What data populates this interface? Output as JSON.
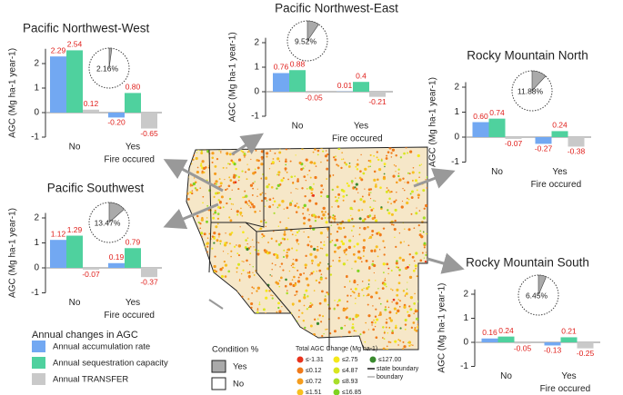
{
  "chart_data": [
    {
      "type": "bar",
      "title": "Pacific Northwest-West",
      "y_label": "AGC (Mg ha-1 year-1)",
      "x_label": "Fire occured",
      "categories": [
        "No",
        "Yes"
      ],
      "series": [
        {
          "name": "Annual accumulation rate",
          "color": "#72a8f2",
          "values": [
            2.29,
            -0.2
          ],
          "value_labels": [
            "2.29",
            "-0.20"
          ]
        },
        {
          "name": "Annual sequestration capacity",
          "color": "#4fd19e",
          "values": [
            2.54,
            0.8
          ],
          "value_labels": [
            "2.54",
            "0.80"
          ]
        },
        {
          "name": "Annual TRANSFER",
          "color": "#c9c9c9",
          "values": [
            0.12,
            -0.65
          ],
          "value_labels": [
            "0.12",
            "-0.65"
          ]
        }
      ],
      "ylim": [
        -1,
        2.6
      ],
      "yticks": [
        -1,
        0,
        1,
        2
      ],
      "fire_share": {
        "value": 2.16,
        "label": "2.16%"
      }
    },
    {
      "type": "bar",
      "title": "Pacific Northwest-East",
      "y_label": "AGC (Mg ha-1 year-1)",
      "x_label": "Fire occured",
      "categories": [
        "No",
        "Yes"
      ],
      "series": [
        {
          "color": "#72a8f2",
          "values": [
            0.76,
            0.01
          ],
          "value_labels": [
            "0.76",
            "0.01"
          ]
        },
        {
          "color": "#4fd19e",
          "values": [
            0.88,
            0.4
          ],
          "value_labels": [
            "0.88",
            "0.4"
          ]
        },
        {
          "color": "#c9c9c9",
          "values": [
            -0.05,
            -0.21
          ],
          "value_labels": [
            "-0.05",
            "-0.21"
          ]
        }
      ],
      "ylim": [
        -1,
        2.2
      ],
      "yticks": [
        -1,
        0,
        1,
        2
      ],
      "fire_share": {
        "value": 9.52,
        "label": "9.52%"
      }
    },
    {
      "type": "bar",
      "title": "Rocky Mountain North",
      "y_label": "AGC (Mg ha-1 year-1)",
      "x_label": "Fire occured",
      "categories": [
        "No",
        "Yes"
      ],
      "series": [
        {
          "color": "#72a8f2",
          "values": [
            0.6,
            -0.27
          ],
          "value_labels": [
            "0.60",
            "-0.27"
          ]
        },
        {
          "color": "#4fd19e",
          "values": [
            0.74,
            0.24
          ],
          "value_labels": [
            "0.74",
            "0.24"
          ]
        },
        {
          "color": "#c9c9c9",
          "values": [
            -0.07,
            -0.38
          ],
          "value_labels": [
            "-0.07",
            "-0.38"
          ]
        }
      ],
      "ylim": [
        -1,
        2.2
      ],
      "yticks": [
        -1,
        0,
        1,
        2
      ],
      "fire_share": {
        "value": 11.88,
        "label": "11.88%"
      }
    },
    {
      "type": "bar",
      "title": "Pacific Southwest",
      "y_label": "AGC (Mg ha-1 year-1)",
      "x_label": "Fire occured",
      "categories": [
        "No",
        "Yes"
      ],
      "series": [
        {
          "color": "#72a8f2",
          "values": [
            1.12,
            0.19
          ],
          "value_labels": [
            "1.12",
            "0.19"
          ]
        },
        {
          "color": "#4fd19e",
          "values": [
            1.29,
            0.79
          ],
          "value_labels": [
            "1.29",
            "0.79"
          ]
        },
        {
          "color": "#c9c9c9",
          "values": [
            -0.07,
            -0.37
          ],
          "value_labels": [
            "-0.07",
            "-0.37"
          ]
        }
      ],
      "ylim": [
        -1,
        2.2
      ],
      "yticks": [
        -1,
        0,
        1,
        2
      ],
      "fire_share": {
        "value": 13.47,
        "label": "13.47%"
      }
    },
    {
      "type": "bar",
      "title": "Rocky Mountain South",
      "y_label": "AGC (Mg ha-1 year-1)",
      "x_label": "Fire occured",
      "categories": [
        "No",
        "Yes"
      ],
      "series": [
        {
          "color": "#72a8f2",
          "values": [
            0.16,
            -0.13
          ],
          "value_labels": [
            "0.16",
            "-0.13"
          ]
        },
        {
          "color": "#4fd19e",
          "values": [
            0.24,
            0.21
          ],
          "value_labels": [
            "0.24",
            "0.21"
          ]
        },
        {
          "color": "#c9c9c9",
          "values": [
            -0.05,
            -0.25
          ],
          "value_labels": [
            "-0.05",
            "-0.25"
          ]
        }
      ],
      "ylim": [
        -1,
        2.2
      ],
      "yticks": [
        -1,
        0,
        1,
        2
      ],
      "fire_share": {
        "value": 6.45,
        "label": "6.45%"
      }
    }
  ],
  "legend": {
    "title": "Annual changes in AGC"
  },
  "condition_legend": {
    "title": "Condition %",
    "yes": "Yes",
    "no": "No"
  },
  "map_legend": {
    "title": "Total AGC Change (Mg ha-1)",
    "classes": [
      {
        "label": "≤-1.31",
        "color": "#e8331c"
      },
      {
        "label": "≤0.12",
        "color": "#f07a1a"
      },
      {
        "label": "≤0.72",
        "color": "#f59d1e"
      },
      {
        "label": "≤1.51",
        "color": "#f7c020"
      },
      {
        "label": "≤2.75",
        "color": "#f4e81a"
      },
      {
        "label": "≤4.87",
        "color": "#d8e61e"
      },
      {
        "label": "≤8.93",
        "color": "#a8de2a"
      },
      {
        "label": "≤16.85",
        "color": "#7ed321"
      },
      {
        "label": "≤127.00",
        "color": "#3a8a2e"
      }
    ],
    "state_boundary": "state boundary",
    "boundary": "boundary"
  }
}
